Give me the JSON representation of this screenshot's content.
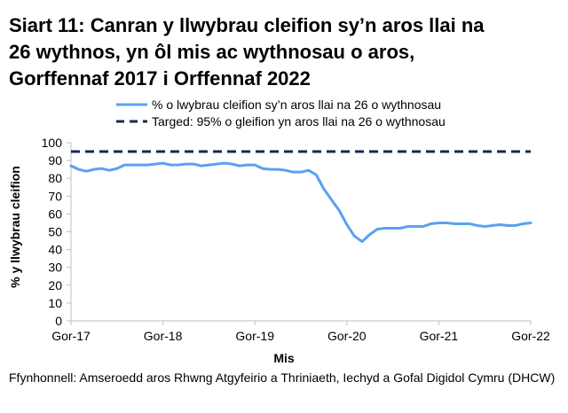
{
  "title_lines": [
    "Siart 11: Canran y llwybrau cleifion sy’n aros llai na",
    "26 wythnos, yn ôl mis ac wythnosau o aros,",
    "Gorffennaf 2017 i Orffennaf 2022"
  ],
  "source_note": "Ffynhonnell: Amseroedd aros Rhwng Atgyfeirio a Thriniaeth, Iechyd a Gofal Digidol Cymru (DHCW)",
  "colors": {
    "series": "#5aa1f0",
    "target": "#142b48",
    "axis": "#bfbfbf",
    "text": "#000000"
  },
  "chart_data": {
    "type": "line",
    "title": "Siart 11: Canran y llwybrau cleifion sy’n aros llai na 26 wythnos, yn ôl mis ac wythnosau o aros, Gorffennaf 2017 i Orffennaf 2022",
    "xlabel": "Mis",
    "ylabel": "% y llwybrau cleifion",
    "ylim": [
      0,
      100
    ],
    "yticks": [
      0,
      10,
      20,
      30,
      40,
      50,
      60,
      70,
      80,
      90,
      100
    ],
    "xticks": [
      {
        "index": 0,
        "label": "Gor-17"
      },
      {
        "index": 12,
        "label": "Gor-18"
      },
      {
        "index": 24,
        "label": "Gor-19"
      },
      {
        "index": 36,
        "label": "Gor-20"
      },
      {
        "index": 48,
        "label": "Gor-21"
      },
      {
        "index": 60,
        "label": "Gor-22"
      }
    ],
    "legend_position": "top",
    "series": [
      {
        "name": "% o lwybrau cleifion sy’n aros llai na 26 o wythnosau",
        "style": "solid",
        "values": [
          87,
          85,
          84,
          85,
          85.5,
          84.5,
          85.5,
          87.5,
          87.5,
          87.5,
          87.5,
          88,
          88.5,
          87.5,
          87.5,
          88,
          88,
          87,
          87.5,
          88,
          88.5,
          88,
          87,
          87.5,
          87.5,
          85.5,
          85,
          85,
          84.5,
          83.5,
          83.5,
          84.5,
          82,
          74,
          68,
          62,
          54,
          47.5,
          44.5,
          48.5,
          51.5,
          52,
          52,
          52,
          53,
          53,
          53,
          54.5,
          55,
          55,
          54.5,
          54.5,
          54.5,
          53.5,
          53,
          53.5,
          54,
          53.5,
          53.5,
          54.5,
          55
        ]
      },
      {
        "name": "Targed: 95% o gleifion yn aros llai na 26 o wythnosau",
        "style": "dashed",
        "constant": 95
      }
    ]
  }
}
